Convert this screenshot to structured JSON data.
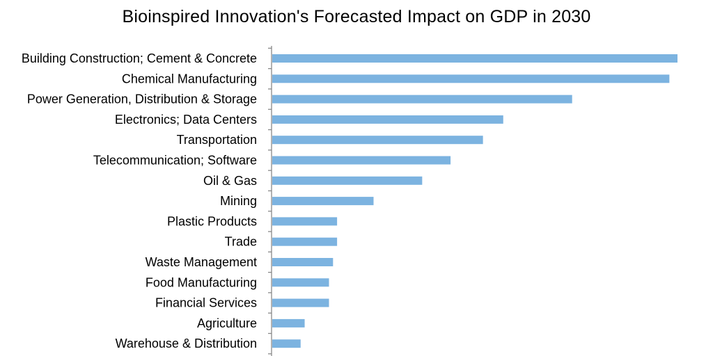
{
  "chart_data": {
    "type": "bar",
    "orientation": "horizontal",
    "title": "Bioinspired Innovation's Forecasted Impact on GDP in 2030",
    "xlabel": "",
    "ylabel": "",
    "grid": false,
    "xlim": [
      0,
      100
    ],
    "categories": [
      "Building Construction; Cement & Concrete",
      "Chemical Manufacturing",
      "Power Generation, Distribution & Storage",
      "Electronics; Data Centers",
      "Transportation",
      "Telecommunication; Software",
      "Oil & Gas",
      "Mining",
      "Plastic Products",
      "Trade",
      "Waste Management",
      "Food Manufacturing",
      "Financial Services",
      "Agriculture",
      "Warehouse & Distribution"
    ],
    "values": [
      100,
      98,
      74,
      57,
      52,
      44,
      37,
      25,
      16,
      16,
      15,
      14,
      14,
      8,
      7
    ],
    "bar_color": "#7cb3e0",
    "axis_color": "#888888"
  }
}
